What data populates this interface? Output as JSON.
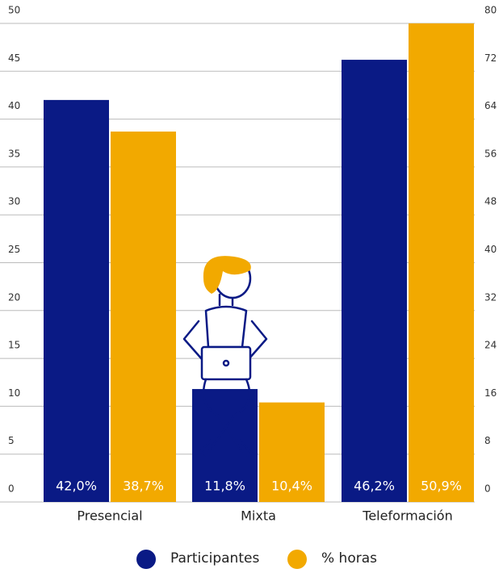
{
  "chart_data": {
    "type": "bar",
    "categories": [
      "Presencial",
      "Mixta",
      "Teleformación"
    ],
    "series": [
      {
        "name": "Participantes",
        "color": "#0a1a85",
        "values": [
          42.0,
          11.8,
          46.2
        ],
        "value_labels": [
          "42,0%",
          "11,8%",
          "46,2%"
        ]
      },
      {
        "name": "% horas",
        "color": "#f2a900",
        "values": [
          38.7,
          10.4,
          50.9
        ],
        "value_labels": [
          "38,7%",
          "10,4%",
          "50,9%"
        ]
      }
    ],
    "ylim": [
      0,
      50
    ],
    "yticks": [
      0,
      5,
      10,
      15,
      20,
      25,
      30,
      35,
      40,
      45,
      50
    ],
    "y2lim": [
      0,
      80
    ],
    "y2ticks": [
      0,
      8,
      16,
      24,
      32,
      40,
      48,
      56,
      64,
      72,
      80
    ],
    "grid": true,
    "legend": "bottom"
  }
}
